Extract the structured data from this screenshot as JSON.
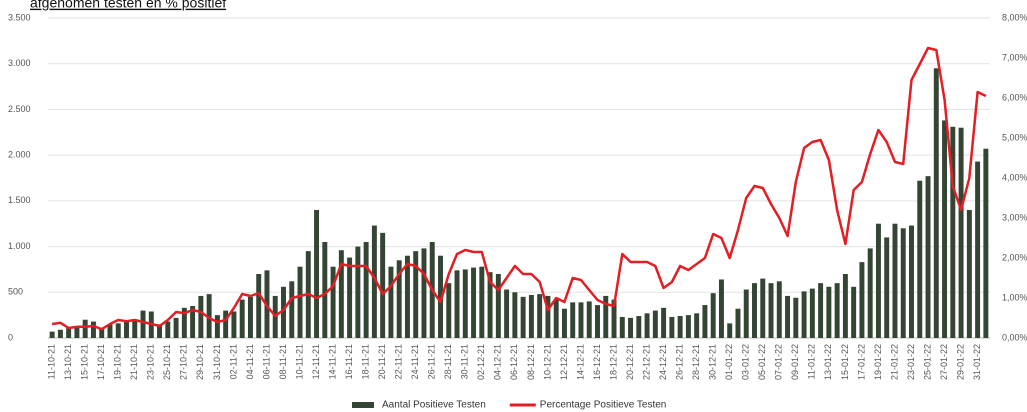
{
  "chart_data": {
    "type": "bar_line",
    "title": "afgenomen testen en % positief",
    "categories": [
      "11-10-21",
      null,
      "13-10-21",
      null,
      "15-10-21",
      null,
      "17-10-21",
      null,
      "19-10-21",
      null,
      "21-10-21",
      null,
      "23-10-21",
      null,
      "25-10-21",
      null,
      "27-10-21",
      null,
      "29-10-21",
      null,
      "31-10-21",
      null,
      "02-11-21",
      null,
      "04-11-21",
      null,
      "06-11-21",
      null,
      "08-11-21",
      null,
      "10-11-21",
      null,
      "12-11-21",
      null,
      "14-11-21",
      null,
      "16-11-21",
      null,
      "18-11-21",
      null,
      "20-11-21",
      null,
      "22-11-21",
      null,
      "24-11-21",
      null,
      "26-11-21",
      null,
      "28-11-21",
      null,
      "30-11-21",
      null,
      "02-12-21",
      null,
      "04-12-21",
      null,
      "06-12-21",
      null,
      "08-12-21",
      null,
      "10-12-21",
      null,
      "12-12-21",
      null,
      "14-12-21",
      null,
      "16-12-21",
      null,
      "18-12-21",
      null,
      "20-12-21",
      null,
      "22-12-21",
      null,
      "24-12-21",
      null,
      "26-12-21",
      null,
      "28-12-21",
      null,
      "30-12-21",
      null,
      "01-01-22",
      null,
      "03-01-22",
      null,
      "05-01-22",
      null,
      "07-01-22",
      null,
      "09-01-22",
      null,
      "11-01-22",
      null,
      "13-01-22",
      null,
      "15-01-22",
      null,
      "17-01-22",
      null,
      "19-01-22",
      null,
      "21-01-22",
      null,
      "23-01-22",
      null,
      "25-01-22",
      null,
      "27-01-22",
      null,
      "29-01-22",
      null,
      "31-01-22",
      null
    ],
    "series": [
      {
        "name": "Aantal Positieve Testen",
        "color": "#344534",
        "values": [
          70,
          90,
          110,
          130,
          200,
          180,
          110,
          150,
          160,
          180,
          200,
          300,
          290,
          150,
          180,
          220,
          330,
          350,
          460,
          480,
          250,
          300,
          290,
          420,
          450,
          700,
          740,
          460,
          560,
          620,
          780,
          950,
          1400,
          1050,
          780,
          960,
          880,
          1000,
          1050,
          1230,
          1150,
          780,
          850,
          900,
          950,
          980,
          1050,
          900,
          600,
          740,
          750,
          770,
          780,
          720,
          700,
          530,
          500,
          450,
          470,
          480,
          460,
          420,
          320,
          390,
          390,
          400,
          360,
          460,
          420,
          230,
          220,
          240,
          270,
          300,
          330,
          230,
          240,
          250,
          270,
          360,
          490,
          640,
          160,
          320,
          530,
          600,
          650,
          600,
          620,
          460,
          440,
          510,
          540,
          600,
          560,
          600,
          700,
          560,
          830,
          980,
          1250,
          1100,
          1250,
          1200,
          1230,
          1720,
          1770,
          2950,
          2380,
          2310,
          2300,
          1400,
          1930,
          2070
        ]
      },
      {
        "name": "Percentage Positieve Testen",
        "color": "#e31e24",
        "axis": "y2",
        "values": [
          0.35,
          0.38,
          0.25,
          0.28,
          0.28,
          0.3,
          0.22,
          0.35,
          0.45,
          0.42,
          0.45,
          0.4,
          0.35,
          0.3,
          0.45,
          0.65,
          0.62,
          0.7,
          0.65,
          0.5,
          0.4,
          0.45,
          0.75,
          1.1,
          1.05,
          1.12,
          0.8,
          0.55,
          0.7,
          1.0,
          1.05,
          1.1,
          1.0,
          1.1,
          1.3,
          1.85,
          1.8,
          1.8,
          1.8,
          1.5,
          1.1,
          1.3,
          1.6,
          1.85,
          1.8,
          1.6,
          1.2,
          0.9,
          1.6,
          2.1,
          2.2,
          2.15,
          2.15,
          1.4,
          1.2,
          1.5,
          1.8,
          1.6,
          1.6,
          1.4,
          0.7,
          1.0,
          0.9,
          1.5,
          1.45,
          1.2,
          0.95,
          0.85,
          0.8,
          2.1,
          1.9,
          1.9,
          1.9,
          1.8,
          1.25,
          1.4,
          1.8,
          1.7,
          1.85,
          2.0,
          2.6,
          2.5,
          2.0,
          2.7,
          3.5,
          3.8,
          3.75,
          3.35,
          3.0,
          2.55,
          3.9,
          4.75,
          4.9,
          4.95,
          4.45,
          3.2,
          2.35,
          3.7,
          3.9,
          4.6,
          5.2,
          4.9,
          4.4,
          4.35,
          6.45,
          6.85,
          7.25,
          7.2,
          5.95,
          3.8,
          3.2,
          4.0,
          6.15,
          6.05
        ]
      }
    ],
    "ylim": [
      0,
      3500
    ],
    "yticks": [
      0,
      500,
      {
        "value": 1000,
        "label": "1.000"
      },
      {
        "value": 1500,
        "label": "1.500"
      },
      {
        "value": 2000,
        "label": "2.000"
      },
      {
        "value": 2500,
        "label": "2.500"
      },
      {
        "value": 3000,
        "label": "3.000"
      },
      {
        "value": 3500,
        "label": "3.500"
      }
    ],
    "y2lim": [
      0,
      8
    ],
    "y2ticks": [
      {
        "value": 0,
        "label": "0,00%"
      },
      {
        "value": 1,
        "label": "1,00%"
      },
      {
        "value": 2,
        "label": "2,00%"
      },
      {
        "value": 3,
        "label": "3,00%"
      },
      {
        "value": 4,
        "label": "4,00%"
      },
      {
        "value": 5,
        "label": "5,00%"
      },
      {
        "value": 6,
        "label": "6,00%"
      },
      {
        "value": 7,
        "label": "7,00%"
      },
      {
        "value": 8,
        "label": "8,00%"
      }
    ],
    "grid": true
  }
}
